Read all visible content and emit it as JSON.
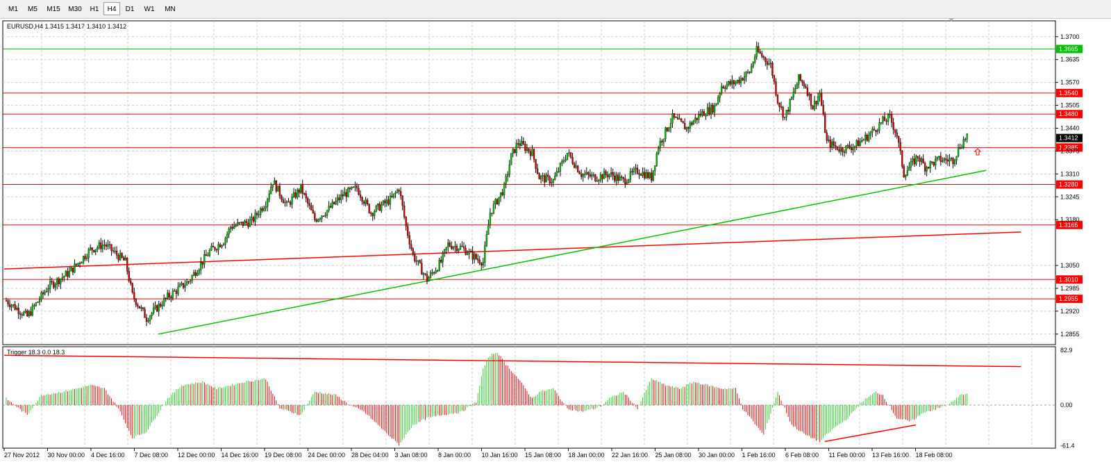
{
  "timeframes": [
    "M1",
    "M5",
    "M15",
    "M30",
    "H1",
    "H4",
    "D1",
    "W1",
    "MN"
  ],
  "active_timeframe": "H4",
  "chart_data": {
    "type": "candlestick",
    "symbol_header": "EURUSD,H4  1.3415 1.3417 1.3410 1.3412",
    "price_axis": {
      "ylim": [
        1.2825,
        1.3745
      ],
      "ticks": [
        "1.3700",
        "1.3635",
        "1.3570",
        "1.3505",
        "1.3440",
        "1.3375",
        "1.3310",
        "1.3245",
        "1.3180",
        "1.3050",
        "1.2985",
        "1.2920",
        "1.2855"
      ]
    },
    "current_price": "1.3412",
    "horizontal_levels": [
      {
        "price": 1.3665,
        "label": "1.3665",
        "color": "#00c000"
      },
      {
        "price": 1.354,
        "label": "1.3540",
        "color": "#ff0000"
      },
      {
        "price": 1.348,
        "label": "1.3480",
        "color": "#ff0000"
      },
      {
        "price": 1.3385,
        "label": "1.3385",
        "color": "#ff0000"
      },
      {
        "price": 1.328,
        "label": "1.3280",
        "color": "#ff0000"
      },
      {
        "price": 1.3165,
        "label": "1.3165",
        "color": "#ff0000"
      },
      {
        "price": 1.301,
        "label": "1.3010",
        "color": "#ff0000"
      },
      {
        "price": 1.2955,
        "label": "1.2955",
        "color": "#ff0000"
      }
    ],
    "trendlines": [
      {
        "panel": "price",
        "from": [
          0,
          1.304
        ],
        "to": [
          145,
          1.3145
        ],
        "color": "#ff0000"
      },
      {
        "panel": "price",
        "from": [
          22,
          1.2855
        ],
        "to": [
          140,
          1.332
        ],
        "color": "#00c000"
      },
      {
        "panel": "indicator",
        "from": [
          0,
          75
        ],
        "to": [
          145,
          58
        ],
        "color": "#ff0000"
      },
      {
        "panel": "indicator",
        "from": [
          117,
          -55
        ],
        "to": [
          130,
          -30
        ],
        "color": "#ff0000"
      }
    ],
    "x_axis_labels": [
      "27 Nov 2012",
      "30 Nov 00:00",
      "4 Dec 16:00",
      "7 Dec 08:00",
      "12 Dec 00:00",
      "14 Dec 16:00",
      "19 Dec 08:00",
      "24 Dec 00:00",
      "28 Dec 04:00",
      "3 Jan 08:00",
      "8 Jan 00:00",
      "10 Jan 16:00",
      "15 Jan 08:00",
      "18 Jan 00:00",
      "22 Jan 16:00",
      "25 Jan 08:00",
      "30 Jan 00:00",
      "1 Feb 16:00",
      "6 Feb 08:00",
      "11 Feb 00:00",
      "13 Feb 16:00",
      "18 Feb 08:00"
    ],
    "anchors": [
      [
        0,
        1.295
      ],
      [
        3,
        1.2905
      ],
      [
        6,
        1.299
      ],
      [
        9,
        1.303
      ],
      [
        12,
        1.3095
      ],
      [
        14,
        1.311
      ],
      [
        17,
        1.306
      ],
      [
        18,
        1.2965
      ],
      [
        20,
        1.29
      ],
      [
        23,
        1.296
      ],
      [
        26,
        1.3005
      ],
      [
        29,
        1.309
      ],
      [
        31,
        1.312
      ],
      [
        32,
        1.316
      ],
      [
        35,
        1.3175
      ],
      [
        37,
        1.323
      ],
      [
        38,
        1.329
      ],
      [
        40,
        1.322
      ],
      [
        42,
        1.327
      ],
      [
        44,
        1.318
      ],
      [
        46,
        1.321
      ],
      [
        48,
        1.325
      ],
      [
        50,
        1.327
      ],
      [
        52,
        1.32
      ],
      [
        55,
        1.324
      ],
      [
        56,
        1.327
      ],
      [
        57,
        1.316
      ],
      [
        58,
        1.308
      ],
      [
        60,
        1.301
      ],
      [
        62,
        1.306
      ],
      [
        63,
        1.311
      ],
      [
        65,
        1.31
      ],
      [
        67,
        1.307
      ],
      [
        68,
        1.306
      ],
      [
        69,
        1.32
      ],
      [
        71,
        1.327
      ],
      [
        72,
        1.336
      ],
      [
        73,
        1.34
      ],
      [
        75,
        1.337
      ],
      [
        76,
        1.33
      ],
      [
        78,
        1.329
      ],
      [
        80,
        1.337
      ],
      [
        82,
        1.331
      ],
      [
        84,
        1.33
      ],
      [
        86,
        1.331
      ],
      [
        88,
        1.329
      ],
      [
        90,
        1.332
      ],
      [
        92,
        1.33
      ],
      [
        93,
        1.339
      ],
      [
        95,
        1.347
      ],
      [
        97,
        1.344
      ],
      [
        99,
        1.348
      ],
      [
        101,
        1.35
      ],
      [
        102,
        1.356
      ],
      [
        104,
        1.357
      ],
      [
        106,
        1.36
      ],
      [
        107,
        1.366
      ],
      [
        109,
        1.362
      ],
      [
        110,
        1.352
      ],
      [
        111,
        1.347
      ],
      [
        113,
        1.358
      ],
      [
        114,
        1.356
      ],
      [
        115,
        1.35
      ],
      [
        116,
        1.354
      ],
      [
        117,
        1.34
      ],
      [
        119,
        1.338
      ],
      [
        121,
        1.339
      ],
      [
        123,
        1.342
      ],
      [
        125,
        1.346
      ],
      [
        126,
        1.347
      ],
      [
        127,
        1.342
      ],
      [
        128,
        1.331
      ],
      [
        130,
        1.336
      ],
      [
        131,
        1.333
      ],
      [
        133,
        1.335
      ],
      [
        135,
        1.335
      ],
      [
        136,
        1.339
      ],
      [
        137,
        1.342
      ]
    ],
    "indicator": {
      "header": "Trigger 18.3 0.0 18.3",
      "ylim": [
        -65,
        88
      ],
      "ticks": [
        "82.9",
        "0.00",
        "-61.4"
      ],
      "anchors": [
        [
          0,
          10
        ],
        [
          3,
          -15
        ],
        [
          5,
          15
        ],
        [
          8,
          20
        ],
        [
          12,
          30
        ],
        [
          14,
          25
        ],
        [
          16,
          -5
        ],
        [
          18,
          -50
        ],
        [
          20,
          -40
        ],
        [
          23,
          10
        ],
        [
          25,
          30
        ],
        [
          28,
          35
        ],
        [
          30,
          25
        ],
        [
          32,
          30
        ],
        [
          34,
          35
        ],
        [
          37,
          40
        ],
        [
          39,
          -5
        ],
        [
          42,
          -15
        ],
        [
          44,
          20
        ],
        [
          47,
          15
        ],
        [
          49,
          0
        ],
        [
          51,
          -10
        ],
        [
          54,
          -40
        ],
        [
          56,
          -60
        ],
        [
          58,
          -30
        ],
        [
          60,
          -20
        ],
        [
          62,
          -15
        ],
        [
          65,
          -10
        ],
        [
          67,
          5
        ],
        [
          68,
          55
        ],
        [
          69,
          75
        ],
        [
          70,
          80
        ],
        [
          71,
          65
        ],
        [
          73,
          40
        ],
        [
          75,
          10
        ],
        [
          76,
          20
        ],
        [
          78,
          25
        ],
        [
          80,
          -5
        ],
        [
          82,
          -10
        ],
        [
          84,
          -5
        ],
        [
          85,
          0
        ],
        [
          86,
          10
        ],
        [
          88,
          20
        ],
        [
          90,
          -5
        ],
        [
          92,
          40
        ],
        [
          94,
          30
        ],
        [
          96,
          25
        ],
        [
          98,
          35
        ],
        [
          100,
          30
        ],
        [
          102,
          25
        ],
        [
          104,
          25
        ],
        [
          105,
          -5
        ],
        [
          108,
          -45
        ],
        [
          110,
          20
        ],
        [
          112,
          -30
        ],
        [
          114,
          -45
        ],
        [
          116,
          -55
        ],
        [
          118,
          -35
        ],
        [
          120,
          -20
        ],
        [
          122,
          5
        ],
        [
          124,
          20
        ],
        [
          125,
          15
        ],
        [
          127,
          -20
        ],
        [
          129,
          -25
        ],
        [
          131,
          -10
        ],
        [
          133,
          -5
        ],
        [
          135,
          5
        ],
        [
          136,
          15
        ],
        [
          137,
          18.3
        ]
      ]
    },
    "series_colors": {
      "bull": "#00bb00",
      "bear": "#cc0000",
      "ind_up": "#33cc33",
      "ind_down": "#dd1111"
    }
  }
}
